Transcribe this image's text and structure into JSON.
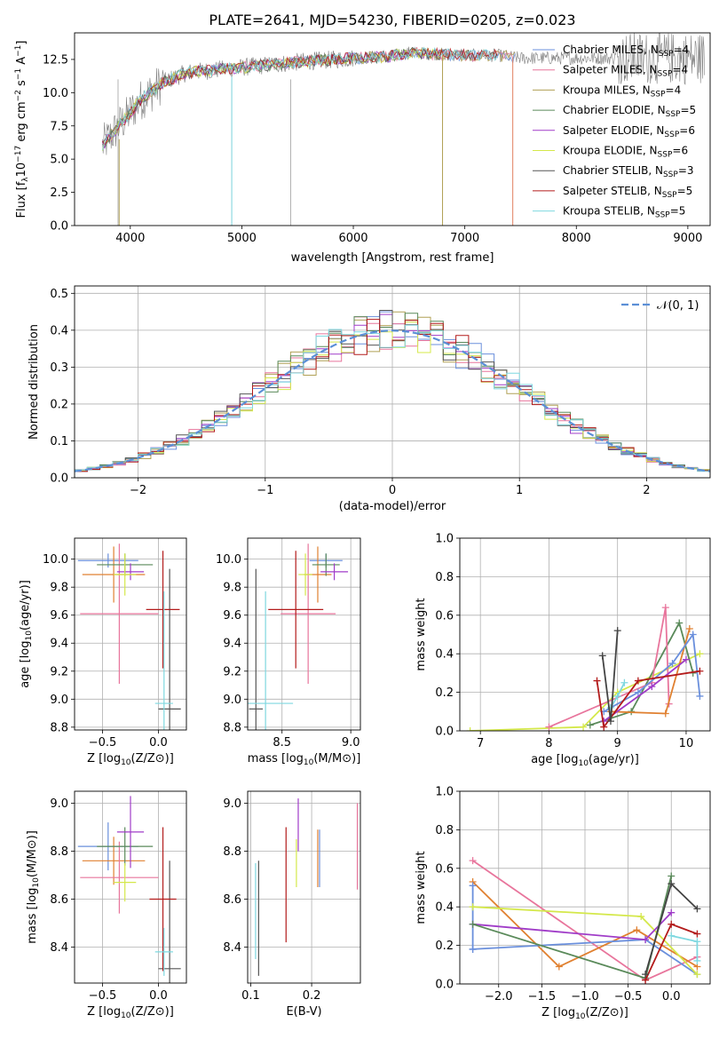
{
  "figure_title": "PLATE=2641, MJD=54230, FIBERID=0205, z=0.023",
  "chart_data": [
    {
      "id": "spectrum",
      "type": "line",
      "title": "PLATE=2641, MJD=54230, FIBERID=0205, z=0.023",
      "xlabel": "wavelength [Angstrom, rest frame]",
      "ylabel": "Flux [f_λ 10^-17 erg cm^-2 s^-1 A^-1]",
      "xlim": [
        3500,
        9200
      ],
      "ylim": [
        0,
        14.5
      ],
      "xticks": [
        4000,
        5000,
        6000,
        7000,
        8000,
        9000
      ],
      "xtick_labels": [
        "4000",
        "5000",
        "6000",
        "7000",
        "8000",
        "9000"
      ],
      "yticks": [
        0,
        2.5,
        5,
        7.5,
        10,
        12.5
      ],
      "ytick_labels": [
        "0.0",
        "2.5",
        "5.0",
        "7.5",
        "10.0",
        "12.5"
      ],
      "legend_position": "top-right",
      "observed_color": "#808080",
      "continuum": {
        "x": [
          3750,
          3850,
          4000,
          4100,
          4300,
          4500,
          5000,
          5500,
          6000,
          6300,
          6500,
          6800,
          7000,
          7300,
          7500
        ],
        "y": [
          6.0,
          7.0,
          8.5,
          9.5,
          10.8,
          11.5,
          11.9,
          12.3,
          12.6,
          12.7,
          13.0,
          12.9,
          12.8,
          12.8,
          12.6
        ]
      },
      "series": [
        {
          "name": "Chabrier MILES, N_SSP=4",
          "label_main": "Chabrier MILES, N",
          "label_sub": "SSP",
          "label_tail": "=4",
          "color": "#6a8fdc",
          "x_end": 7450
        },
        {
          "name": "Salpeter MILES, N_SSP=4",
          "label_main": "Salpeter MILES, N",
          "label_sub": "SSP",
          "label_tail": "=4",
          "color": "#e8759c",
          "x_end": 7430
        },
        {
          "name": "Kroupa MILES, N_SSP=4",
          "label_main": "Kroupa MILES, N",
          "label_sub": "SSP",
          "label_tail": "=4",
          "color": "#b0a055",
          "x_end": 7450
        },
        {
          "name": "Chabrier ELODIE, N_SSP=5",
          "label_main": "Chabrier ELODIE, N",
          "label_sub": "SSP",
          "label_tail": "=5",
          "color": "#5a8a5a",
          "x_end": 6800
        },
        {
          "name": "Salpeter ELODIE, N_SSP=6",
          "label_main": "Salpeter ELODIE, N",
          "label_sub": "SSP",
          "label_tail": "=6",
          "color": "#a03cc8",
          "x_end": 6800
        },
        {
          "name": "Kroupa ELODIE, N_SSP=6",
          "label_main": "Kroupa ELODIE, N",
          "label_sub": "SSP",
          "label_tail": "=6",
          "color": "#d4e84a",
          "x_end": 6800
        },
        {
          "name": "Chabrier STELIB, N_SSP=3",
          "label_main": "Chabrier STELIB, N",
          "label_sub": "SSP",
          "label_tail": "=3",
          "color": "#555555",
          "x_end": 7300
        },
        {
          "name": "Salpeter STELIB, N_SSP=5",
          "label_main": "Salpeter STELIB, N",
          "label_sub": "SSP",
          "label_tail": "=5",
          "color": "#b31b1b",
          "x_end": 7300
        },
        {
          "name": "Kroupa STELIB, N_SSP=5",
          "label_main": "Kroupa STELIB, N",
          "label_sub": "SSP",
          "label_tail": "=5",
          "color": "#7fd8e0",
          "x_end": 7300
        }
      ]
    },
    {
      "id": "residuals",
      "type": "histogram",
      "xlabel": "(data-model)/error",
      "ylabel": "Normed distribution",
      "xlim": [
        -2.5,
        2.5
      ],
      "ylim": [
        0,
        0.52
      ],
      "xticks": [
        -2,
        -1,
        0,
        1,
        2
      ],
      "xtick_labels": [
        "−2",
        "−1",
        "0",
        "1",
        "2"
      ],
      "yticks": [
        0,
        0.1,
        0.2,
        0.3,
        0.4,
        0.5
      ],
      "ytick_labels": [
        "0.0",
        "0.1",
        "0.2",
        "0.3",
        "0.4",
        "0.5"
      ],
      "legend": {
        "label": "𝒩(0, 1)",
        "position": "top-right",
        "color": "#5b8fd6"
      },
      "bin_width": 0.1,
      "bin_start": -2.5,
      "gaussian": {
        "mu": 0,
        "sigma": 1
      }
    },
    {
      "id": "age_vs_Z",
      "type": "errorbar",
      "xlabel_main": "Z [log",
      "xlabel_sub": "10",
      "xlabel_tail": "(Z/Z⊙)]",
      "ylabel_main": "age  [log",
      "ylabel_sub": "10",
      "ylabel_tail": "(age/yr)]",
      "xlim": [
        -0.75,
        0.25
      ],
      "ylim": [
        8.78,
        10.15
      ],
      "xticks": [
        -0.5,
        0.0
      ],
      "xtick_labels": [
        "−0.5",
        "0.0"
      ],
      "yticks": [
        8.8,
        9.0,
        9.2,
        9.4,
        9.6,
        9.8,
        10.0
      ],
      "ytick_labels": [
        "8.8",
        "9.0",
        "9.2",
        "9.4",
        "9.6",
        "9.8",
        "10.0"
      ],
      "points": [
        {
          "x": -0.45,
          "y": 9.99,
          "xerr": 0.27,
          "yerr": 0.05,
          "color": "#6a8fdc"
        },
        {
          "x": -0.4,
          "y": 9.89,
          "xerr": 0.28,
          "yerr": 0.2,
          "color": "#e08030"
        },
        {
          "x": -0.35,
          "y": 9.61,
          "xerr": 0.35,
          "yerr": 0.5,
          "color": "#e8759c"
        },
        {
          "x": -0.3,
          "y": 9.96,
          "xerr": 0.25,
          "yerr": 0.08,
          "color": "#5a8a5a"
        },
        {
          "x": -0.25,
          "y": 9.91,
          "xerr": 0.12,
          "yerr": 0.06,
          "color": "#a03cc8"
        },
        {
          "x": -0.3,
          "y": 9.89,
          "xerr": 0.1,
          "yerr": 0.15,
          "color": "#d4e84a"
        },
        {
          "x": 0.1,
          "y": 8.93,
          "xerr": 0.1,
          "yerr": 1.0,
          "color": "#555555"
        },
        {
          "x": 0.04,
          "y": 9.64,
          "xerr": 0.15,
          "yerr": 0.42,
          "color": "#b31b1b"
        },
        {
          "x": 0.05,
          "y": 8.97,
          "xerr": 0.08,
          "yerr": 0.8,
          "color": "#7fd8e0"
        }
      ]
    },
    {
      "id": "age_vs_mass",
      "type": "errorbar",
      "xlabel_main": "mass [log",
      "xlabel_sub": "10",
      "xlabel_tail": "(M/M⊙)]",
      "xlim": [
        8.25,
        9.07
      ],
      "ylim": [
        8.78,
        10.15
      ],
      "xticks": [
        8.5,
        9.0
      ],
      "xtick_labels": [
        "8.5",
        "9.0"
      ],
      "yticks": [
        8.8,
        9.0,
        9.2,
        9.4,
        9.6,
        9.8,
        10.0
      ],
      "ytick_labels": [
        "8.8",
        "9.0",
        "9.2",
        "9.4",
        "9.6",
        "9.8",
        "10.0"
      ],
      "points": [
        {
          "x": 8.82,
          "y": 9.99,
          "xerr": 0.12,
          "yerr": 0.05,
          "color": "#6a8fdc"
        },
        {
          "x": 8.76,
          "y": 9.89,
          "xerr": 0.1,
          "yerr": 0.2,
          "color": "#e08030"
        },
        {
          "x": 8.69,
          "y": 9.61,
          "xerr": 0.2,
          "yerr": 0.5,
          "color": "#e8759c"
        },
        {
          "x": 8.82,
          "y": 9.96,
          "xerr": 0.1,
          "yerr": 0.08,
          "color": "#5a8a5a"
        },
        {
          "x": 8.88,
          "y": 9.91,
          "xerr": 0.1,
          "yerr": 0.06,
          "color": "#a03cc8"
        },
        {
          "x": 8.67,
          "y": 9.89,
          "xerr": 0.05,
          "yerr": 0.15,
          "color": "#d4e84a"
        },
        {
          "x": 8.31,
          "y": 8.93,
          "xerr": 0.05,
          "yerr": 1.0,
          "color": "#555555"
        },
        {
          "x": 8.6,
          "y": 9.64,
          "xerr": 0.2,
          "yerr": 0.42,
          "color": "#b31b1b"
        },
        {
          "x": 8.38,
          "y": 8.97,
          "xerr": 0.2,
          "yerr": 0.8,
          "color": "#7fd8e0"
        }
      ]
    },
    {
      "id": "weight_vs_age",
      "type": "line",
      "xlabel_main": "age  [log",
      "xlabel_sub": "10",
      "xlabel_tail": "(age/yr)]",
      "ylabel": "mass weight",
      "xlim": [
        6.7,
        10.35
      ],
      "ylim": [
        0,
        1
      ],
      "xticks": [
        7,
        8,
        9,
        10
      ],
      "xtick_labels": [
        "7",
        "8",
        "9",
        "10"
      ],
      "yticks": [
        0,
        0.2,
        0.4,
        0.6,
        0.8,
        1.0
      ],
      "ytick_labels": [
        "0.0",
        "0.2",
        "0.4",
        "0.6",
        "0.8",
        "1.0"
      ],
      "series": [
        {
          "color": "#d4e84a",
          "x": [
            6.85,
            8.5,
            9.0,
            10.2
          ],
          "y": [
            0.0,
            0.02,
            0.2,
            0.4
          ]
        },
        {
          "color": "#5a8a5a",
          "x": [
            8.6,
            9.2,
            9.9,
            10.1
          ],
          "y": [
            0.03,
            0.1,
            0.56,
            0.3
          ]
        },
        {
          "color": "#e8759c",
          "x": [
            8.0,
            9.5,
            9.7,
            9.75
          ],
          "y": [
            0.02,
            0.25,
            0.64,
            0.14
          ]
        },
        {
          "color": "#e08030",
          "x": [
            8.9,
            9.7,
            10.05
          ],
          "y": [
            0.1,
            0.09,
            0.53
          ]
        },
        {
          "color": "#6a8fdc",
          "x": [
            8.8,
            9.3,
            9.8,
            10.1,
            10.2
          ],
          "y": [
            0.1,
            0.2,
            0.35,
            0.5,
            0.18
          ]
        },
        {
          "color": "#a03cc8",
          "x": [
            8.8,
            9.5,
            10.0
          ],
          "y": [
            0.05,
            0.23,
            0.37
          ]
        },
        {
          "color": "#b31b1b",
          "x": [
            8.7,
            8.8,
            9.3,
            10.2
          ],
          "y": [
            0.26,
            0.02,
            0.26,
            0.31
          ]
        },
        {
          "color": "#7fd8e0",
          "x": [
            8.9,
            9.0,
            9.1
          ],
          "y": [
            0.12,
            0.18,
            0.25
          ]
        },
        {
          "color": "#444444",
          "x": [
            8.78,
            8.9,
            9.0
          ],
          "y": [
            0.39,
            0.05,
            0.52
          ]
        }
      ]
    },
    {
      "id": "mass_vs_Z",
      "type": "errorbar",
      "xlabel_main": "Z [log",
      "xlabel_sub": "10",
      "xlabel_tail": "(Z/Z⊙)]",
      "ylabel_main": "mass [log",
      "ylabel_sub": "10",
      "ylabel_tail": "(M/M⊙)]",
      "xlim": [
        -0.75,
        0.25
      ],
      "ylim": [
        8.25,
        9.05
      ],
      "xticks": [
        -0.5,
        0.0
      ],
      "xtick_labels": [
        "−0.5",
        "0.0"
      ],
      "yticks": [
        8.4,
        8.6,
        8.8,
        9.0
      ],
      "ytick_labels": [
        "8.4",
        "8.6",
        "8.8",
        "9.0"
      ],
      "points": [
        {
          "x": -0.45,
          "y": 8.82,
          "xerr": 0.27,
          "yerr": 0.1,
          "color": "#6a8fdc"
        },
        {
          "x": -0.4,
          "y": 8.76,
          "xerr": 0.28,
          "yerr": 0.1,
          "color": "#e08030"
        },
        {
          "x": -0.35,
          "y": 8.69,
          "xerr": 0.35,
          "yerr": 0.15,
          "color": "#e8759c"
        },
        {
          "x": -0.3,
          "y": 8.82,
          "xerr": 0.25,
          "yerr": 0.08,
          "color": "#5a8a5a"
        },
        {
          "x": -0.25,
          "y": 8.88,
          "xerr": 0.12,
          "yerr": 0.15,
          "color": "#a03cc8"
        },
        {
          "x": -0.3,
          "y": 8.67,
          "xerr": 0.1,
          "yerr": 0.08,
          "color": "#d4e84a"
        },
        {
          "x": 0.1,
          "y": 8.31,
          "xerr": 0.1,
          "yerr": 0.45,
          "color": "#555555"
        },
        {
          "x": 0.04,
          "y": 8.6,
          "xerr": 0.12,
          "yerr": 0.3,
          "color": "#b31b1b"
        },
        {
          "x": 0.05,
          "y": 8.38,
          "xerr": 0.08,
          "yerr": 0.1,
          "color": "#7fd8e0"
        }
      ]
    },
    {
      "id": "mass_vs_ebv",
      "type": "errorbar",
      "xlabel": "E(B-V)",
      "xlim": [
        0.095,
        0.28
      ],
      "ylim": [
        8.25,
        9.05
      ],
      "xticks": [
        0.1,
        0.2
      ],
      "xtick_labels": [
        "0.1",
        "0.2"
      ],
      "yticks": [
        8.4,
        8.6,
        8.8,
        9.0
      ],
      "ytick_labels": [
        "8.4",
        "8.6",
        "8.8",
        "9.0"
      ],
      "points": [
        {
          "x": 0.113,
          "y": 8.52,
          "yerr": 0.24,
          "color": "#555555"
        },
        {
          "x": 0.108,
          "y": 8.55,
          "yerr": 0.2,
          "color": "#7fd8e0"
        },
        {
          "x": 0.158,
          "y": 8.66,
          "yerr": 0.24,
          "color": "#b31b1b"
        },
        {
          "x": 0.175,
          "y": 8.75,
          "yerr": 0.1,
          "color": "#d4e84a"
        },
        {
          "x": 0.178,
          "y": 8.91,
          "yerr": 0.11,
          "color": "#a03cc8"
        },
        {
          "x": 0.21,
          "y": 8.77,
          "yerr": 0.12,
          "color": "#e08030"
        },
        {
          "x": 0.213,
          "y": 8.77,
          "yerr": 0.12,
          "color": "#6a8fdc"
        },
        {
          "x": 0.275,
          "y": 8.82,
          "yerr": 0.18,
          "color": "#e8759c"
        }
      ]
    },
    {
      "id": "weight_vs_Z",
      "type": "line",
      "xlabel_main": "Z [log",
      "xlabel_sub": "10",
      "xlabel_tail": "(Z/Z⊙)]",
      "ylabel": "mass weight",
      "xlim": [
        -2.45,
        0.45
      ],
      "ylim": [
        0,
        1
      ],
      "xticks": [
        -2.0,
        -1.5,
        -1.0,
        -0.5,
        0.0
      ],
      "xtick_labels": [
        "−2.0",
        "−1.5",
        "−1.0",
        "−0.5",
        "0.0"
      ],
      "yticks": [
        0,
        0.2,
        0.4,
        0.6,
        0.8,
        1.0
      ],
      "ytick_labels": [
        "0.0",
        "0.2",
        "0.4",
        "0.6",
        "0.8",
        "1.0"
      ],
      "series": [
        {
          "color": "#e8759c",
          "x": [
            -2.3,
            -0.3,
            0.3
          ],
          "y": [
            0.64,
            0.02,
            0.14
          ]
        },
        {
          "color": "#e08030",
          "x": [
            -2.3,
            -1.3,
            -0.4,
            0.3
          ],
          "y": [
            0.53,
            0.09,
            0.28,
            0.09
          ]
        },
        {
          "color": "#6a8fdc",
          "x": [
            -2.3,
            -0.3,
            0.3
          ],
          "y": [
            0.18,
            0.23,
            0.05
          ]
        },
        {
          "color": "#6a8fdc",
          "x": [
            -2.3,
            -2.3
          ],
          "y": [
            0.18,
            0.51
          ]
        },
        {
          "color": "#d4e84a",
          "x": [
            -2.3,
            -0.35,
            0.3
          ],
          "y": [
            0.4,
            0.35,
            0.05
          ]
        },
        {
          "color": "#a03cc8",
          "x": [
            -2.3,
            -0.3,
            0.0
          ],
          "y": [
            0.31,
            0.23,
            0.37
          ]
        },
        {
          "color": "#5a8a5a",
          "x": [
            -2.3,
            -0.3,
            0.0
          ],
          "y": [
            0.31,
            0.03,
            0.56
          ]
        },
        {
          "color": "#b31b1b",
          "x": [
            -0.3,
            0.0,
            0.3
          ],
          "y": [
            0.02,
            0.31,
            0.26
          ]
        },
        {
          "color": "#444444",
          "x": [
            -0.3,
            0.0,
            0.3
          ],
          "y": [
            0.05,
            0.52,
            0.39
          ]
        },
        {
          "color": "#7fd8e0",
          "x": [
            0.0,
            0.3,
            0.3
          ],
          "y": [
            0.25,
            0.22,
            0.12
          ]
        }
      ]
    }
  ]
}
